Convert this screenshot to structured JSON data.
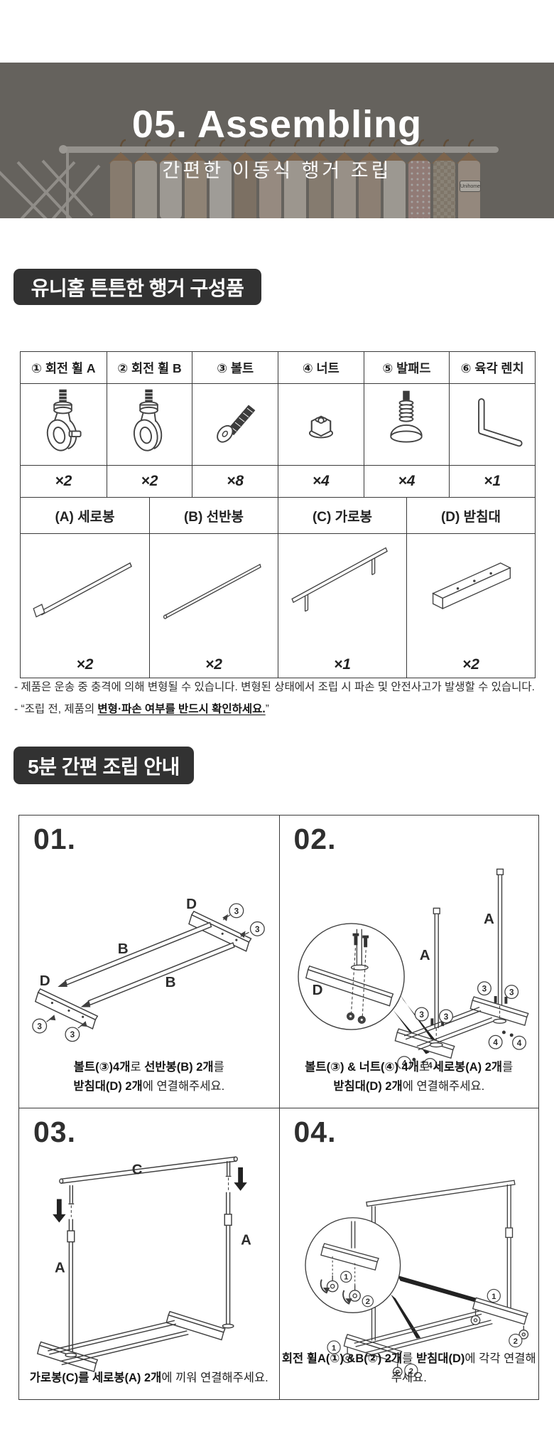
{
  "theme": {
    "badge_bg": "#323232",
    "line_color": "#3f3f3f",
    "text_color": "#2e2e2e"
  },
  "hero": {
    "title": "05. Assembling",
    "subtitle": "간편한 이동식 행거 조립",
    "wall_label": "Unihome"
  },
  "parts_section": {
    "badge": "유니홈 튼튼한 행거 구성품",
    "hardware": [
      {
        "label": "① 회전 휠 A",
        "qty": "×2",
        "icon": "caster-wheel-brake-icon"
      },
      {
        "label": "② 회전 휠 B",
        "qty": "×2",
        "icon": "caster-wheel-icon"
      },
      {
        "label": "③ 볼트",
        "qty": "×8",
        "icon": "bolt-icon"
      },
      {
        "label": "④ 너트",
        "qty": "×4",
        "icon": "nut-icon"
      },
      {
        "label": "⑤ 발패드",
        "qty": "×4",
        "icon": "foot-pad-icon"
      },
      {
        "label": "⑥ 육각 렌치",
        "qty": "×1",
        "icon": "hex-wrench-icon"
      }
    ],
    "frames": [
      {
        "label": "(A) 세로봉",
        "qty": "×2",
        "icon": "vertical-pole-icon"
      },
      {
        "label": "(B) 선반봉",
        "qty": "×2",
        "icon": "shelf-pole-icon"
      },
      {
        "label": "(C) 가로봉",
        "qty": "×1",
        "icon": "horizontal-pole-icon"
      },
      {
        "label": "(D) 받침대",
        "qty": "×2",
        "icon": "base-bar-icon"
      }
    ],
    "notes": [
      {
        "segments": [
          {
            "t": "- 제품은 운송 중 충격에 의해 변형될 수 있습니다. 변형된 상태에서 조립 시 파손 및 안전사고가 발생할 수 있습니다."
          }
        ]
      },
      {
        "segments": [
          {
            "t": "- “조립 전, 제품의 "
          },
          {
            "t": "변형·파손 여부를 반드시 확인하세요.",
            "b": true,
            "u": true
          },
          {
            "t": "”"
          }
        ]
      }
    ]
  },
  "steps_section": {
    "badge": "5분 간편 조립 안내",
    "steps": [
      {
        "num": "01.",
        "caption_line1": [
          {
            "t": "볼트(③)4개",
            "b": true
          },
          {
            "t": "로 "
          },
          {
            "t": "선반봉(B) 2개",
            "b": true
          },
          {
            "t": "를"
          }
        ],
        "caption_line2": [
          {
            "t": "받침대(D) 2개",
            "b": true
          },
          {
            "t": "에 연결해주세요."
          }
        ],
        "labels": {
          "bar_top": "D",
          "bar_bottom": "D",
          "rod_top": "B",
          "rod_bottom": "B",
          "bolt_callout": "3"
        }
      },
      {
        "num": "02.",
        "caption_line1": [
          {
            "t": "볼트(③) & 너트(④) 4개",
            "b": true
          },
          {
            "t": "로 "
          },
          {
            "t": "세로봉(A) 2개",
            "b": true
          },
          {
            "t": "를"
          }
        ],
        "caption_line2": [
          {
            "t": "받침대(D) 2개",
            "b": true
          },
          {
            "t": "에 연결해주세요."
          }
        ],
        "labels": {
          "pole_front": "A",
          "pole_rear": "A",
          "bar": "D",
          "bolt_callout": "3",
          "nut_callout": "4"
        }
      },
      {
        "num": "03.",
        "caption_line1": [
          {
            "t": "가로봉(C)를 세로봉(A) 2개",
            "b": true
          },
          {
            "t": "에 끼워 연결해주세요."
          }
        ],
        "labels": {
          "top_bar": "C",
          "pole_front": "A",
          "pole_rear": "A"
        }
      },
      {
        "num": "04.",
        "caption_line1": [
          {
            "t": "회전 휠A(①) &B(②) 2개",
            "b": true
          },
          {
            "t": "를 "
          },
          {
            "t": "받침대(D)",
            "b": true
          },
          {
            "t": "에 각각 연결해주세요."
          }
        ],
        "labels": {
          "wheel_a_callout": "1",
          "wheel_b_callout": "2"
        }
      }
    ]
  }
}
